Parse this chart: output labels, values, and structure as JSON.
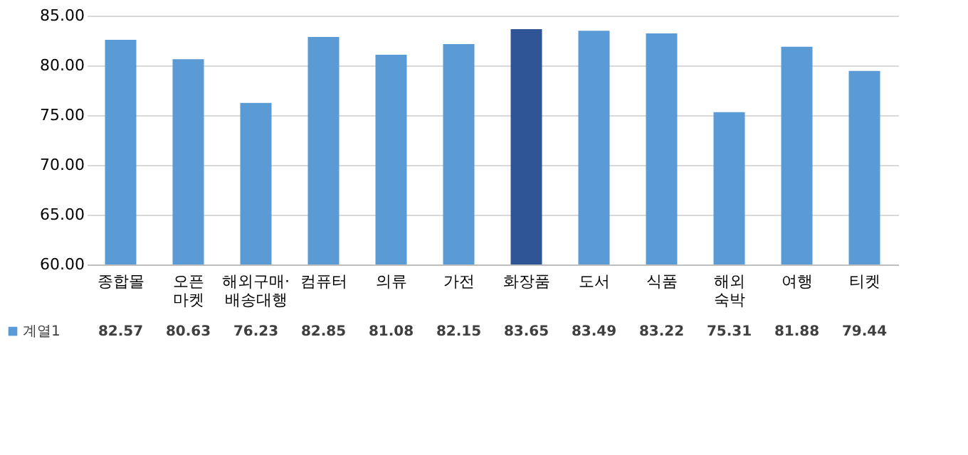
{
  "chart_data": {
    "type": "bar",
    "categories": [
      "종합몰",
      "오픈마켓",
      "해외구매·배송대행",
      "컴퓨터",
      "의류",
      "가전",
      "화장품",
      "도서",
      "식품",
      "해외숙박",
      "여행",
      "티켓"
    ],
    "series": [
      {
        "name": "계열1",
        "color": "#5b9bd5",
        "values": [
          82.57,
          80.63,
          76.23,
          82.85,
          81.08,
          82.15,
          83.65,
          83.49,
          83.22,
          75.31,
          81.88,
          79.44
        ],
        "colors": [
          "#5b9bd5",
          "#5b9bd5",
          "#5b9bd5",
          "#5b9bd5",
          "#5b9bd5",
          "#5b9bd5",
          "#2f5597",
          "#5b9bd5",
          "#5b9bd5",
          "#5b9bd5",
          "#5b9bd5",
          "#5b9bd5"
        ]
      }
    ],
    "ylim": [
      60,
      85
    ],
    "yticks": [
      {
        "value": 60,
        "label": "60.00"
      },
      {
        "value": 65,
        "label": "65.00"
      },
      {
        "value": 70,
        "label": "70.00"
      },
      {
        "value": 75,
        "label": "75.00"
      },
      {
        "value": 80,
        "label": "80.00"
      },
      {
        "value": 85,
        "label": "85.00"
      }
    ],
    "grid": "y",
    "legend": "bottom left",
    "data_labels": true
  }
}
